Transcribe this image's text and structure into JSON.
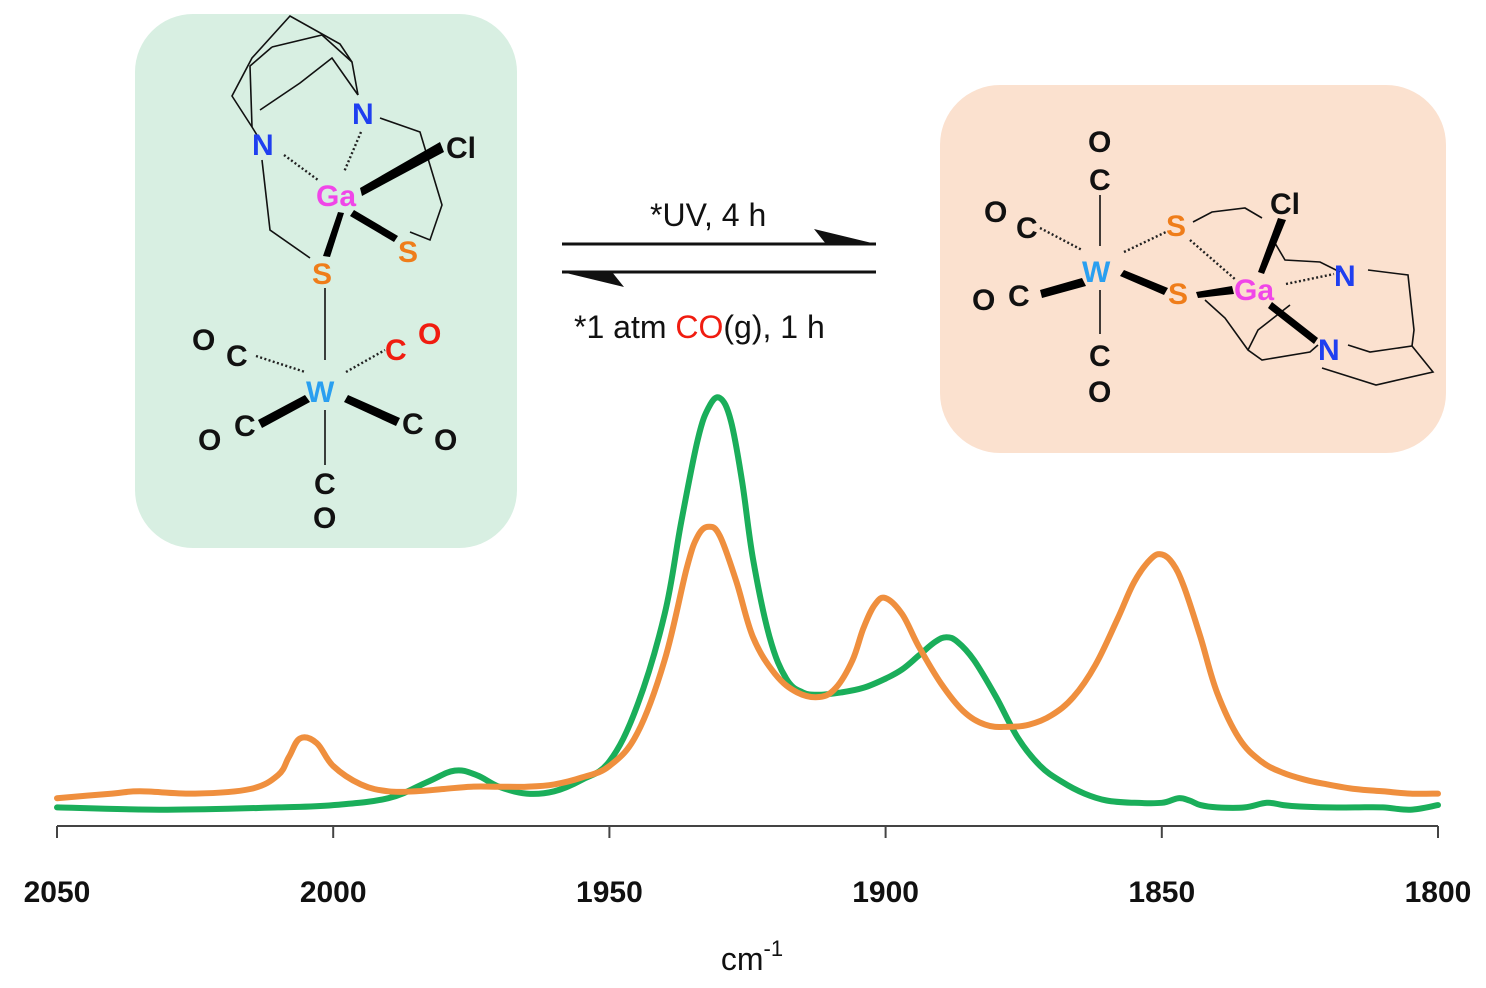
{
  "conditions": {
    "forward": "*UV, 4 h",
    "reverse_prefix": "*1 atm ",
    "reverse_co": "CO",
    "reverse_suffix": "(g), 1 h"
  },
  "colors": {
    "green_series": "#1aae5a",
    "orange_series": "#ef8f3e",
    "left_box_bg": "#d8efe2",
    "right_box_bg": "#fbe1cf",
    "nitrogen": "#1f3ff0",
    "gallium": "#f046e8",
    "sulfur": "#ef7d1a",
    "tungsten": "#2a9ff0",
    "co_red": "#f01c10",
    "black": "#111111"
  },
  "left_complex": {
    "atoms": {
      "n1": "N",
      "n2": "N",
      "ga": "Ga",
      "cl": "Cl",
      "s1": "S",
      "s2": "S",
      "w": "W",
      "o1": "O",
      "c1": "C",
      "c2": "C",
      "o2": "O",
      "o3": "O",
      "c3": "C",
      "c4": "C",
      "o4": "O",
      "c5": "C",
      "o5": "O"
    }
  },
  "right_complex": {
    "atoms": {
      "o_top": "O",
      "c_top": "C",
      "o_ul": "O",
      "c_ul": "C",
      "w": "W",
      "s1": "S",
      "s2": "S",
      "cl": "Cl",
      "ga": "Ga",
      "n1": "N",
      "n2": "N",
      "o_ll": "O",
      "c_ll": "C",
      "c_bot": "C",
      "o_bot": "O"
    }
  },
  "chart_data": {
    "type": "line",
    "title": "",
    "xlabel": "cm",
    "xlabel_superscript": "-1",
    "ylabel": "",
    "x_reversed": true,
    "xlim": [
      2050,
      1800
    ],
    "ylim": [
      0,
      1.0
    ],
    "y_ticks_shown": false,
    "grid": false,
    "x_ticks": [
      2050,
      2000,
      1950,
      1900,
      1850,
      1800
    ],
    "x_tick_labels": [
      "2050",
      "2000",
      "1950",
      "1900",
      "1850",
      "1800"
    ],
    "series": [
      {
        "color": "#1aae5a",
        "x": [
          2050,
          2030,
          2010,
          2000,
          1990,
          1983,
          1978,
          1974,
          1970,
          1965,
          1960,
          1955,
          1950,
          1945,
          1940,
          1937,
          1934,
          1932,
          1930,
          1928,
          1926,
          1924,
          1921,
          1918,
          1915,
          1912,
          1908,
          1904,
          1900,
          1897,
          1894,
          1891,
          1889,
          1887,
          1884,
          1880,
          1876,
          1872,
          1868,
          1864,
          1860,
          1855,
          1850,
          1847,
          1845,
          1843,
          1840,
          1835,
          1831,
          1828,
          1825,
          1820,
          1815,
          1810,
          1805,
          1800
        ],
        "y": [
          0.01,
          0.005,
          0.01,
          0.015,
          0.03,
          0.065,
          0.09,
          0.08,
          0.055,
          0.04,
          0.045,
          0.07,
          0.11,
          0.23,
          0.43,
          0.63,
          0.81,
          0.88,
          0.9,
          0.85,
          0.72,
          0.55,
          0.38,
          0.29,
          0.26,
          0.255,
          0.26,
          0.27,
          0.29,
          0.31,
          0.34,
          0.37,
          0.38,
          0.37,
          0.33,
          0.25,
          0.16,
          0.1,
          0.065,
          0.04,
          0.025,
          0.02,
          0.02,
          0.03,
          0.025,
          0.015,
          0.01,
          0.01,
          0.02,
          0.015,
          0.012,
          0.01,
          0.01,
          0.01,
          0.005,
          0.015
        ]
      },
      {
        "color": "#ef8f3e",
        "x": [
          2050,
          2040,
          2035,
          2025,
          2015,
          2010,
          2008,
          2006,
          2003,
          2000,
          1995,
          1990,
          1985,
          1980,
          1975,
          1970,
          1965,
          1960,
          1955,
          1950,
          1945,
          1940,
          1936,
          1934,
          1932,
          1930,
          1927,
          1924,
          1920,
          1916,
          1912,
          1909,
          1906,
          1904,
          1902,
          1900,
          1897,
          1894,
          1890,
          1886,
          1882,
          1878,
          1874,
          1870,
          1866,
          1862,
          1858,
          1855,
          1852,
          1850,
          1848,
          1846,
          1843,
          1840,
          1836,
          1832,
          1828,
          1824,
          1820,
          1815,
          1810,
          1805,
          1800
        ],
        "y": [
          0.03,
          0.04,
          0.045,
          0.04,
          0.05,
          0.08,
          0.12,
          0.16,
          0.15,
          0.1,
          0.06,
          0.045,
          0.045,
          0.05,
          0.055,
          0.055,
          0.055,
          0.06,
          0.075,
          0.1,
          0.17,
          0.33,
          0.53,
          0.6,
          0.62,
          0.6,
          0.5,
          0.38,
          0.3,
          0.26,
          0.25,
          0.27,
          0.33,
          0.4,
          0.45,
          0.465,
          0.43,
          0.36,
          0.28,
          0.22,
          0.19,
          0.185,
          0.19,
          0.21,
          0.25,
          0.32,
          0.42,
          0.5,
          0.55,
          0.56,
          0.54,
          0.49,
          0.38,
          0.26,
          0.16,
          0.11,
          0.085,
          0.07,
          0.06,
          0.05,
          0.045,
          0.04,
          0.04
        ]
      }
    ]
  }
}
